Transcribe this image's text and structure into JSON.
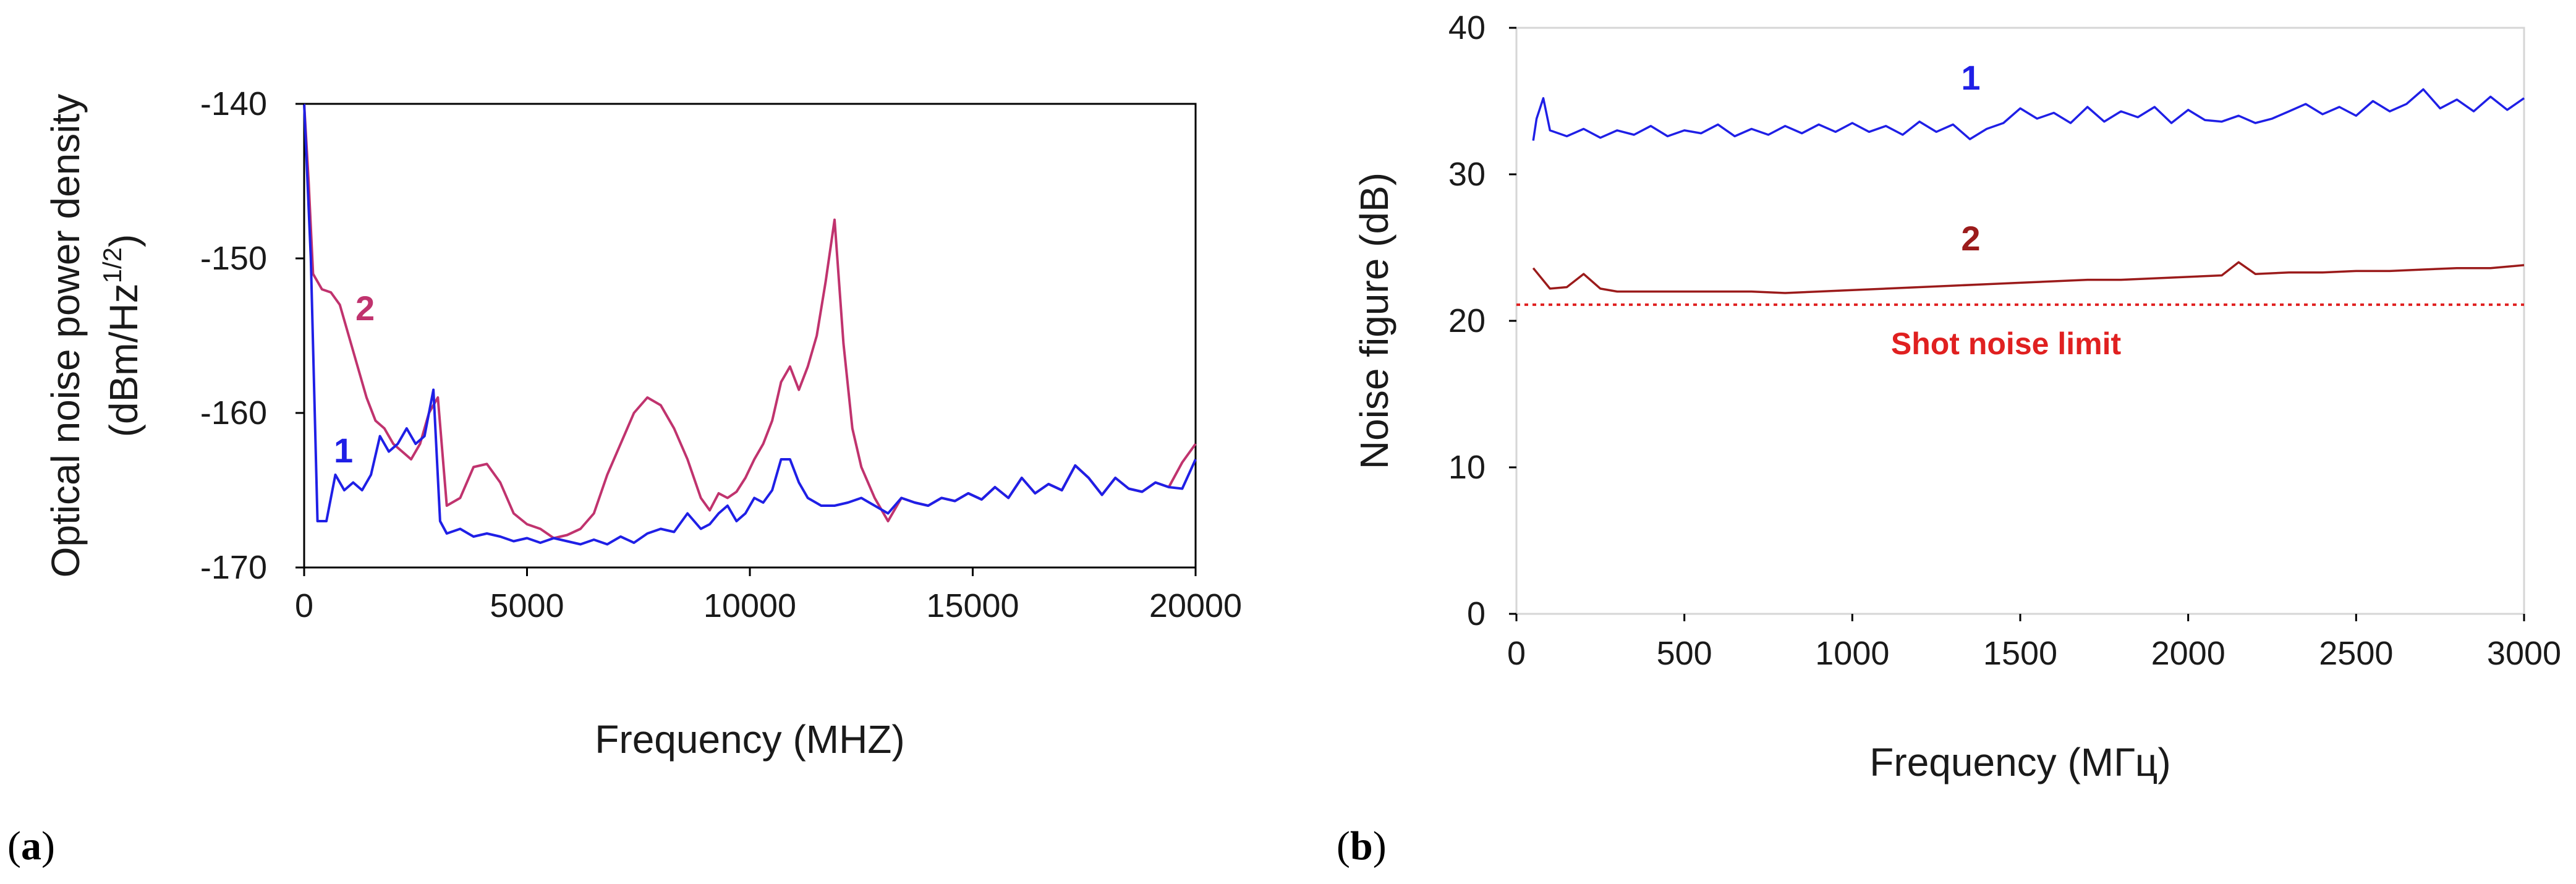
{
  "chart_data": [
    {
      "type": "line",
      "panel_label": "a",
      "title": "",
      "xlabel": "Frequency (MHZ)",
      "ylabel": "Optical noise power density",
      "ylabel_units": "(dBm/Hz",
      "ylabel_units_sup": "1/2",
      "ylabel_units_end": ")",
      "xlim": [
        0,
        20000
      ],
      "ylim": [
        -170,
        -140
      ],
      "xticks": [
        0,
        5000,
        10000,
        15000,
        20000
      ],
      "yticks": [
        -140,
        -150,
        -160,
        -170
      ],
      "grid": false,
      "series": [
        {
          "name": "1",
          "color": "#1f1fe6",
          "x": [
            0,
            150,
            300,
            500,
            700,
            900,
            1100,
            1300,
            1500,
            1700,
            1900,
            2100,
            2300,
            2500,
            2700,
            2900,
            3050,
            3200,
            3500,
            3800,
            4100,
            4400,
            4700,
            5000,
            5300,
            5600,
            5900,
            6200,
            6500,
            6800,
            7100,
            7400,
            7700,
            8000,
            8300,
            8600,
            8900,
            9100,
            9300,
            9500,
            9700,
            9900,
            10100,
            10300,
            10500,
            10700,
            10900,
            11100,
            11300,
            11600,
            11900,
            12200,
            12500,
            12800,
            13100,
            13400,
            13700,
            14000,
            14300,
            14600,
            14900,
            15200,
            15500,
            15800,
            16100,
            16400,
            16700,
            17000,
            17300,
            17600,
            17900,
            18200,
            18500,
            18800,
            19100,
            19400,
            19700,
            20000
          ],
          "y": [
            -140,
            -150,
            -167,
            -167,
            -164,
            -165,
            -164.5,
            -165,
            -164,
            -161.5,
            -162.5,
            -162,
            -161,
            -162,
            -161.5,
            -158.5,
            -167,
            -167.8,
            -167.5,
            -168,
            -167.8,
            -168,
            -168.3,
            -168.1,
            -168.4,
            -168.1,
            -168.3,
            -168.5,
            -168.2,
            -168.5,
            -168,
            -168.4,
            -167.8,
            -167.5,
            -167.7,
            -166.5,
            -167.5,
            -167.2,
            -166.5,
            -166,
            -167,
            -166.5,
            -165.5,
            -165.8,
            -165,
            -163,
            -163,
            -164.5,
            -165.5,
            -166,
            -166,
            -165.8,
            -165.5,
            -166,
            -166.5,
            -165.5,
            -165.8,
            -166,
            -165.5,
            -165.7,
            -165.2,
            -165.6,
            -164.8,
            -165.5,
            -164.2,
            -165.2,
            -164.6,
            -165,
            -163.4,
            -164.2,
            -165.3,
            -164.2,
            -164.9,
            -165.1,
            -164.5,
            -164.8,
            -164.9,
            -163
          ]
        },
        {
          "name": "2",
          "color": "#c0336e",
          "x": [
            0,
            100,
            200,
            400,
            600,
            800,
            1000,
            1200,
            1400,
            1600,
            1800,
            2000,
            2200,
            2400,
            2600,
            2800,
            3000,
            3200,
            3500,
            3800,
            4100,
            4400,
            4700,
            5000,
            5300,
            5600,
            5900,
            6200,
            6500,
            6800,
            7100,
            7400,
            7700,
            8000,
            8300,
            8600,
            8900,
            9100,
            9300,
            9500,
            9700,
            9900,
            10100,
            10300,
            10500,
            10700,
            10900,
            11100,
            11300,
            11500,
            11700,
            11900,
            12100,
            12300,
            12500,
            12800,
            13100,
            13400,
            13700,
            14000,
            14300,
            14600,
            14900,
            15200,
            15500,
            15800,
            16100,
            16400,
            16700,
            17000,
            17300,
            17600,
            17900,
            18200,
            18500,
            18800,
            19100,
            19400,
            19700,
            20000
          ],
          "y": [
            -140,
            -145,
            -151,
            -152,
            -152.2,
            -153,
            -155,
            -157,
            -159,
            -160.5,
            -161,
            -162,
            -162.5,
            -163,
            -162,
            -160,
            -159,
            -166,
            -165.5,
            -163.5,
            -163.3,
            -164.5,
            -166.5,
            -167.2,
            -167.5,
            -168.1,
            -167.9,
            -167.5,
            -166.5,
            -164,
            -162,
            -160,
            -159,
            -159.5,
            -161,
            -163,
            -165.5,
            -166.3,
            -165.2,
            -165.5,
            -165.1,
            -164.2,
            -163,
            -162,
            -160.5,
            -158,
            -157,
            -158.5,
            -157,
            -155,
            -151.5,
            -147.5,
            -155.5,
            -161,
            -163.5,
            -165.5,
            -167,
            -165.5,
            -165.8,
            -166,
            -165.5,
            -165.7,
            -165.2,
            -165.6,
            -164.8,
            -165.5,
            -164.2,
            -165.2,
            -164.6,
            -165,
            -163.4,
            -164.2,
            -165.3,
            -164.2,
            -164.9,
            -165.1,
            -164.5,
            -164.8,
            -163.2,
            -162
          ]
        }
      ],
      "annotations": []
    },
    {
      "type": "line",
      "panel_label": "b",
      "title": "",
      "xlabel": "Frequency (МГц)",
      "ylabel": "Noise figure (dB)",
      "xlim": [
        0,
        3000
      ],
      "ylim": [
        0,
        40
      ],
      "xticks": [
        0,
        500,
        1000,
        1500,
        2000,
        2500,
        3000
      ],
      "yticks": [
        0,
        10,
        20,
        30,
        40
      ],
      "grid": false,
      "series": [
        {
          "name": "1",
          "color": "#1f1fe6",
          "x": [
            50,
            60,
            80,
            100,
            150,
            200,
            250,
            300,
            350,
            400,
            450,
            500,
            550,
            600,
            650,
            700,
            750,
            800,
            850,
            900,
            950,
            1000,
            1050,
            1100,
            1150,
            1200,
            1250,
            1300,
            1350,
            1400,
            1450,
            1500,
            1550,
            1600,
            1650,
            1700,
            1750,
            1800,
            1850,
            1900,
            1950,
            2000,
            2050,
            2100,
            2150,
            2200,
            2250,
            2300,
            2350,
            2400,
            2450,
            2500,
            2550,
            2600,
            2650,
            2700,
            2750,
            2800,
            2850,
            2900,
            2950,
            3000
          ],
          "y": [
            32.3,
            33.8,
            35.2,
            33,
            32.6,
            33.1,
            32.5,
            33,
            32.7,
            33.3,
            32.6,
            33,
            32.8,
            33.4,
            32.6,
            33.1,
            32.7,
            33.3,
            32.8,
            33.4,
            32.9,
            33.5,
            32.9,
            33.3,
            32.7,
            33.6,
            32.9,
            33.4,
            32.4,
            33.1,
            33.5,
            34.5,
            33.8,
            34.2,
            33.5,
            34.6,
            33.6,
            34.3,
            33.9,
            34.6,
            33.5,
            34.4,
            33.7,
            33.6,
            34.0,
            33.5,
            33.8,
            34.3,
            34.8,
            34.1,
            34.6,
            34.0,
            35.0,
            34.3,
            34.8,
            35.8,
            34.5,
            35.1,
            34.3,
            35.3,
            34.4,
            35.2
          ]
        },
        {
          "name": "2",
          "color": "#9b1b1b",
          "x": [
            50,
            100,
            150,
            200,
            250,
            300,
            400,
            500,
            600,
            700,
            800,
            900,
            1000,
            1100,
            1200,
            1300,
            1400,
            1500,
            1600,
            1700,
            1800,
            1900,
            2000,
            2100,
            2150,
            2200,
            2300,
            2400,
            2500,
            2600,
            2700,
            2800,
            2900,
            3000
          ],
          "y": [
            23.6,
            22.2,
            22.3,
            23.2,
            22.2,
            22.0,
            22.0,
            22.0,
            22.0,
            22.0,
            21.9,
            22.0,
            22.1,
            22.2,
            22.3,
            22.4,
            22.5,
            22.6,
            22.7,
            22.8,
            22.8,
            22.9,
            23.0,
            23.1,
            24.0,
            23.2,
            23.3,
            23.3,
            23.4,
            23.4,
            23.5,
            23.6,
            23.6,
            23.8
          ]
        }
      ],
      "reference_line": {
        "label": "Shot noise limit",
        "y": 21.1,
        "color": "#e02020"
      },
      "annotations": [
        {
          "text": "Shot noise limit",
          "color": "#e02020"
        }
      ]
    }
  ]
}
